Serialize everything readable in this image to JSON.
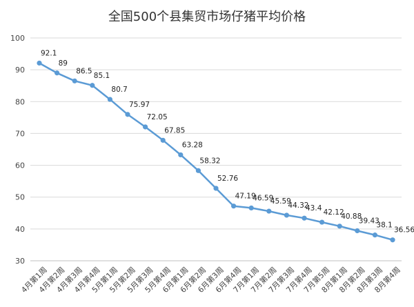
{
  "chart_data": {
    "type": "line",
    "title": "全国500个县集贸市场仔猪平均价格",
    "xlabel": "",
    "ylabel": "",
    "ylim": [
      30,
      100
    ],
    "yticks": [
      30,
      40,
      50,
      60,
      70,
      80,
      90,
      100
    ],
    "grid": true,
    "legend": "none",
    "line_color": "#5b9bd5",
    "categories": [
      "4月第1周",
      "4月第2周",
      "4月第3周",
      "4月第4周",
      "5月第1周",
      "5月第2周",
      "5月第3周",
      "5月第4周",
      "6月第1周",
      "6月第2周",
      "6月第3周",
      "6月第4周",
      "7月第1周",
      "7月第2周",
      "7月第3周",
      "7月第4周",
      "7月第5周",
      "8月第1周",
      "8月第2周",
      "8月第3周",
      "8月第4周"
    ],
    "series": [
      {
        "values": [
          92.1,
          89,
          86.5,
          85.1,
          80.7,
          75.97,
          72.05,
          67.85,
          63.28,
          58.32,
          52.76,
          47.19,
          46.59,
          45.59,
          44.32,
          43.4,
          42.12,
          40.88,
          39.43,
          38.1,
          36.56
        ]
      }
    ]
  }
}
